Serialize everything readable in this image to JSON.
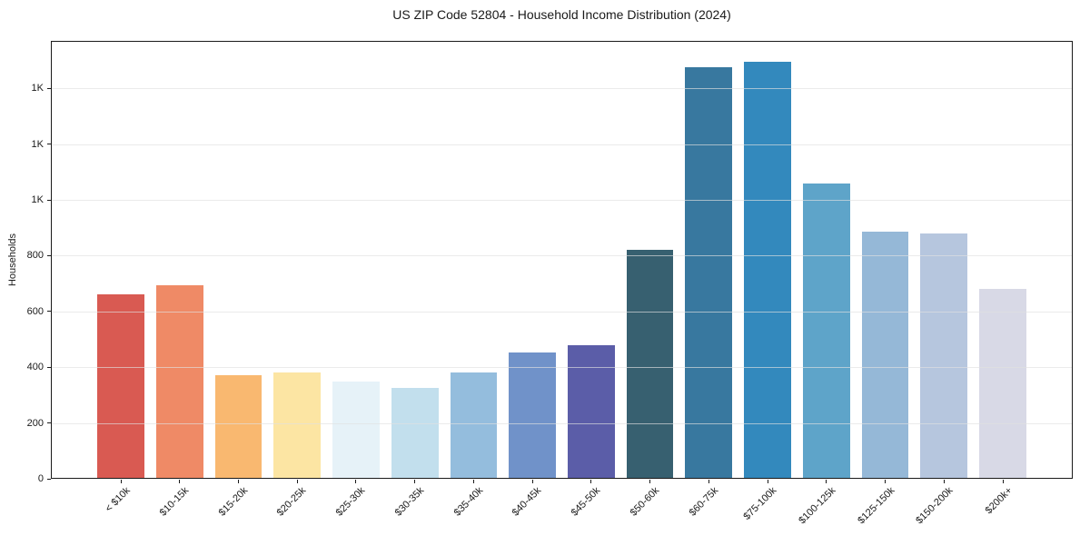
{
  "chart_data": {
    "type": "bar",
    "title": "US ZIP Code 52804 - Household Income Distribution (2024)",
    "xlabel": "",
    "ylabel": "Households",
    "categories": [
      "< $10k",
      "$10-15k",
      "$15-20k",
      "$20-25k",
      "$25-30k",
      "$30-35k",
      "$35-40k",
      "$40-45k",
      "$45-50k",
      "$50-60k",
      "$60-75k",
      "$75-100k",
      "$100-125k",
      "$125-150k",
      "$150-200k",
      "$200k+"
    ],
    "values": [
      663,
      695,
      371,
      381,
      349,
      327,
      380,
      452,
      478,
      820,
      1475,
      1495,
      1060,
      886,
      880,
      682
    ],
    "bar_colors": [
      "#d95a52",
      "#ef8a66",
      "#f9b870",
      "#fce5a3",
      "#e6f2f8",
      "#c2dfed",
      "#94bddd",
      "#7092c9",
      "#5b5da8",
      "#376070",
      "#38789f",
      "#3389bd",
      "#5ea4c9",
      "#95b8d7",
      "#b6c6de",
      "#d8d9e6"
    ],
    "y_tick_values": [
      0,
      200,
      400,
      600,
      800,
      1000,
      1200,
      1400
    ],
    "y_tick_labels": [
      "0",
      "200",
      "400",
      "600",
      "800",
      "1K",
      "1K",
      "1K"
    ],
    "ylim": [
      0,
      1570
    ],
    "grid": "horizontal",
    "legend": "none",
    "background_color": "#ffffff",
    "spine_color": "#1a1a1a",
    "grid_color": "#e6e6e6",
    "x_tick_rotation_deg": 45
  }
}
